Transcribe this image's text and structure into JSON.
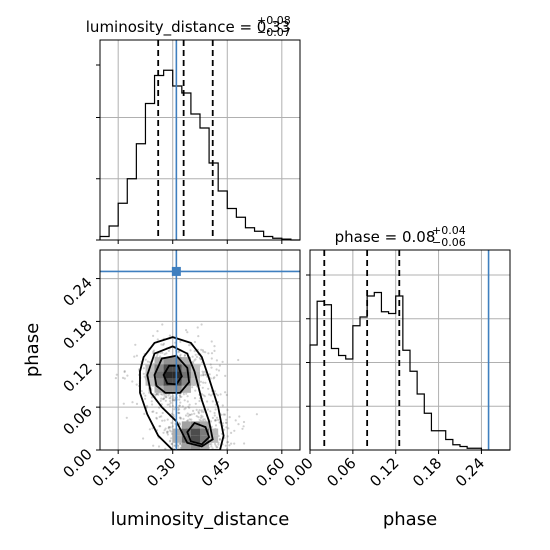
{
  "figure": {
    "type": "corner_plot"
  },
  "chart_data": [
    {
      "type": "bar",
      "panel": "hist-luminosity-distance",
      "title": {
        "main": "luminosity_distance = 0.33",
        "upper": "+0.08",
        "lower": "−0.07"
      },
      "quantiles": [
        0.26,
        0.33,
        0.41
      ],
      "truth": 0.31,
      "xlim": [
        0.1,
        0.65
      ],
      "ylim": [
        0,
        1.0
      ],
      "bin_edges": [
        0.1,
        0.125,
        0.15,
        0.175,
        0.2,
        0.225,
        0.25,
        0.275,
        0.3,
        0.325,
        0.35,
        0.375,
        0.4,
        0.425,
        0.45,
        0.475,
        0.5,
        0.525,
        0.55,
        0.575,
        0.6,
        0.625,
        0.65
      ],
      "counts": [
        0.02,
        0.08,
        0.21,
        0.35,
        0.55,
        0.78,
        0.94,
        0.97,
        0.88,
        0.84,
        0.72,
        0.64,
        0.44,
        0.28,
        0.18,
        0.13,
        0.07,
        0.05,
        0.02,
        0.01,
        0.005,
        0.0
      ]
    },
    {
      "type": "heatmap",
      "panel": "joint-luminosity-distance-phase",
      "xlabel": "luminosity_distance",
      "ylabel": "phase",
      "xlim": [
        0.1,
        0.65
      ],
      "ylim": [
        0.0,
        0.28
      ],
      "xticks": [
        "0.15",
        "0.30",
        "0.45",
        "0.60"
      ],
      "yticks": [
        "0.00",
        "0.06",
        "0.12",
        "0.18",
        "0.24"
      ],
      "truth": [
        0.31,
        0.25
      ],
      "contour_levels": 4
    },
    {
      "type": "bar",
      "panel": "hist-phase",
      "title": {
        "main": "phase = 0.08",
        "upper": "+0.04",
        "lower": "−0.06"
      },
      "xlabel": "phase",
      "quantiles": [
        0.02,
        0.08,
        0.125
      ],
      "truth": 0.25,
      "xlim": [
        0.0,
        0.28
      ],
      "ylim": [
        0,
        1.0
      ],
      "xticks": [
        "0.00",
        "0.06",
        "0.12",
        "0.18",
        "0.24"
      ],
      "bin_edges": [
        0.0,
        0.01,
        0.02,
        0.03,
        0.04,
        0.05,
        0.06,
        0.07,
        0.08,
        0.09,
        0.1,
        0.11,
        0.12,
        0.13,
        0.14,
        0.15,
        0.16,
        0.17,
        0.18,
        0.19,
        0.2,
        0.21,
        0.22,
        0.23,
        0.24,
        0.25,
        0.26,
        0.27,
        0.28
      ],
      "counts": [
        0.6,
        0.85,
        0.83,
        0.58,
        0.54,
        0.52,
        0.71,
        0.76,
        0.88,
        0.9,
        0.79,
        0.78,
        0.88,
        0.57,
        0.45,
        0.32,
        0.21,
        0.11,
        0.11,
        0.06,
        0.03,
        0.02,
        0.01,
        0.01,
        0.0,
        0.0,
        0.0,
        0.0
      ]
    }
  ]
}
